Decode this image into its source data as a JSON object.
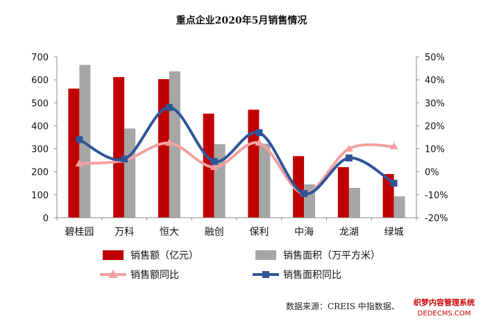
{
  "chart_data": {
    "type": "bar",
    "title": "重点企业2020年5月销售情况",
    "categories": [
      "碧桂园",
      "万科",
      "恒大",
      "融创",
      "保利",
      "中海",
      "龙湖",
      "绿城"
    ],
    "y_left": {
      "ticks": [
        "0",
        "100",
        "200",
        "300",
        "400",
        "500",
        "600",
        "700"
      ],
      "ylim": [
        0,
        700
      ]
    },
    "y_right": {
      "ticks": [
        "-20%",
        "-10%",
        "0%",
        "10%",
        "20%",
        "30%",
        "40%",
        "50%"
      ],
      "ylim": [
        -20,
        50
      ],
      "unit": "%"
    },
    "series": [
      {
        "name": "销售额（亿元）",
        "type": "bar",
        "axis": "left",
        "color": "#c00000",
        "values": [
          562,
          612,
          603,
          453,
          470,
          268,
          220,
          190
        ]
      },
      {
        "name": "销售面积（万平方米）",
        "type": "bar",
        "axis": "left",
        "color": "#a6a6a6",
        "values": [
          665,
          388,
          637,
          320,
          322,
          145,
          130,
          93
        ]
      },
      {
        "name": "销售额同比",
        "type": "line",
        "axis": "right",
        "color": "#f4a0a0",
        "values": [
          3.5,
          5.0,
          12.5,
          2.0,
          12.5,
          -9.5,
          10.0,
          11.0
        ]
      },
      {
        "name": "销售面积同比",
        "type": "line",
        "axis": "right",
        "color": "#2f5597",
        "values": [
          14.0,
          5.5,
          28.0,
          4.5,
          17.0,
          -9.5,
          6.0,
          -5.0
        ]
      }
    ],
    "legend_position": "bottom",
    "grid": false
  },
  "source": "数据来源：CREIS 中指数据、",
  "watermark": {
    "line1": "织梦内容管理系统",
    "line2": "DEDECMS.COM"
  }
}
